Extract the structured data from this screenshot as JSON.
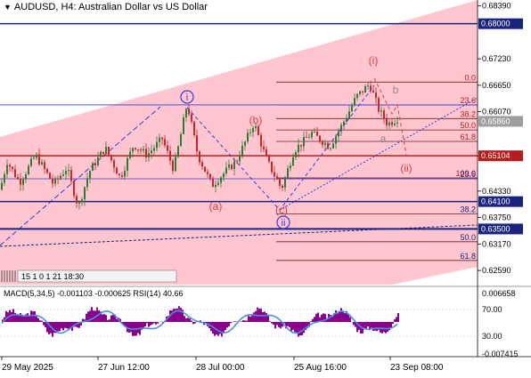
{
  "header": {
    "symbol": "AUDUSD",
    "timeframe": "H4",
    "description": "Australian Dollar vs US Dollar",
    "title": "AUDUSD, H4:  Australian Dollar vs US Dollar"
  },
  "colors": {
    "background": "#ffffff",
    "channel_fill": "#ffc0cb",
    "candle_up": "#2e7d32",
    "candle_down": "#c62828",
    "level_blue": "#1a237e",
    "level_red": "#b71c1c",
    "wave_blue": "#3a3adc",
    "wave_red": "#d84040",
    "price_tag_grey": "#9e9e9e",
    "macd_hist": "#8b008b",
    "macd_signal": "#4a90e2"
  },
  "price_axis": {
    "ticks": [
      "0.68390",
      "0.67230",
      "0.66650",
      "0.66070",
      "0.65104",
      "0.64330",
      "0.63750",
      "0.63170",
      "0.62590"
    ],
    "min": 0.6228,
    "max": 0.6852
  },
  "levels": [
    {
      "price": 0.68,
      "label": "0.68000",
      "color": "#1a237e",
      "width": 1.5
    },
    {
      "price": 0.65104,
      "label": "0.65104",
      "color": "#b71c1c",
      "width": 1.5
    },
    {
      "price": 0.641,
      "label": "0.64100",
      "color": "#1a237e",
      "width": 1.5
    },
    {
      "price": 0.635,
      "label": "0.63500",
      "color": "#1a237e",
      "width": 2
    }
  ],
  "current_price": {
    "price": 0.6586,
    "label": "0.65860"
  },
  "fib_upper": [
    {
      "label": "0.0",
      "price": 0.6672
    },
    {
      "label": "23.6",
      "price": 0.6622
    },
    {
      "label": "38.2",
      "price": 0.6592
    },
    {
      "label": "50.0",
      "price": 0.6567
    },
    {
      "label": "61.8",
      "price": 0.6542
    },
    {
      "label": "100.0",
      "price": 0.6462
    }
  ],
  "fib_lower": [
    {
      "label": "23.6",
      "price": 0.646
    },
    {
      "label": "38.2",
      "price": 0.6383
    },
    {
      "label": "50.0",
      "price": 0.6322
    },
    {
      "label": "61.8",
      "price": 0.6281
    }
  ],
  "wave_labels": [
    {
      "text": "i",
      "style": "circle-blue"
    },
    {
      "text": "ii",
      "style": "circle-blue"
    },
    {
      "text": "(a)",
      "style": "red"
    },
    {
      "text": "(b)",
      "style": "red"
    },
    {
      "text": "(c)",
      "style": "red"
    },
    {
      "text": "(i)",
      "style": "red"
    },
    {
      "text": "(ii)",
      "style": "red"
    },
    {
      "text": "a",
      "style": "grey"
    },
    {
      "text": "b",
      "style": "grey"
    }
  ],
  "toolbar_text": "15 1 0 1 21 18:30",
  "macd": {
    "label": "MACD(5,34,5) -0.001103 -0.000625 RSI(14) 40.66",
    "ticks": [
      "0.006658",
      "70.00",
      "30.00",
      "-0.007415"
    ]
  },
  "time_axis": {
    "ticks": [
      "29 May 2025",
      "27 Jun 12:00",
      "28 Jul 00:00",
      "25 Aug 16:00",
      "23 Sep 08:00"
    ]
  }
}
